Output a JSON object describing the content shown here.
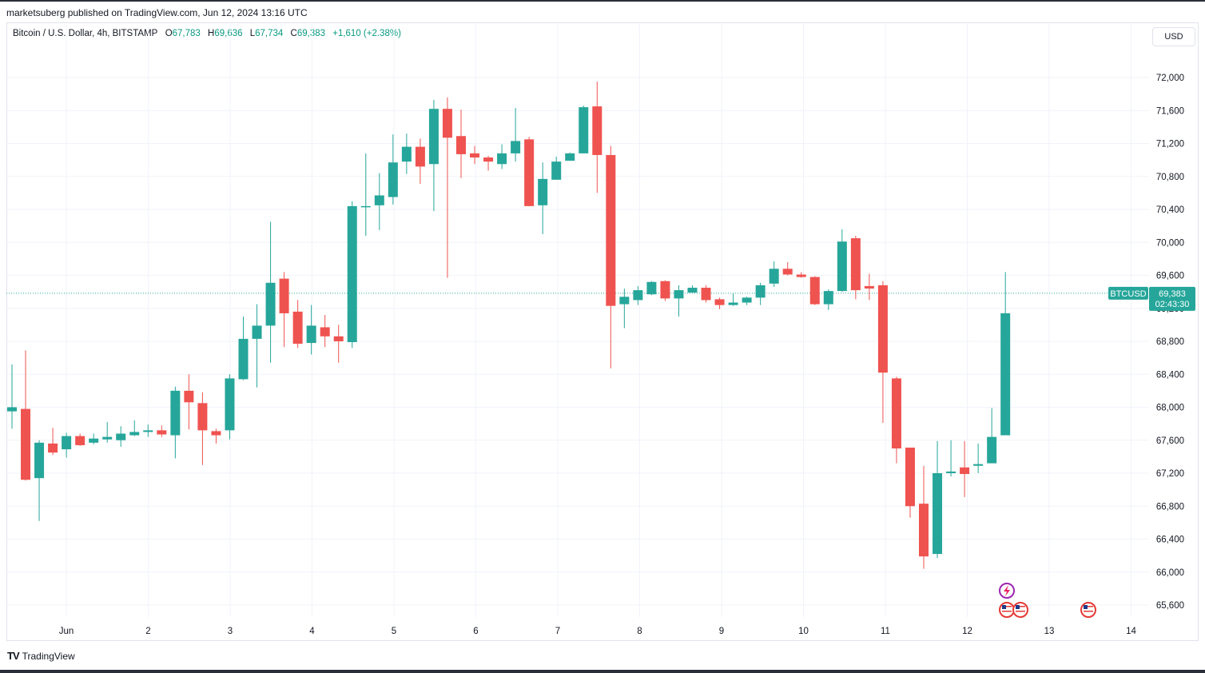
{
  "header": {
    "published": "marketsuberg published on TradingView.com, Jun 12, 2024 13:16 UTC"
  },
  "legend": {
    "symbol": "Bitcoin / U.S. Dollar, 4h, BITSTAMP",
    "o_label": "O",
    "o_value": "67,783",
    "h_label": "H",
    "h_value": "69,636",
    "l_label": "L",
    "l_value": "67,734",
    "c_label": "C",
    "c_value": "69,383",
    "change": "+1,610 (+2.38%)"
  },
  "currency_button": "USD",
  "brand": {
    "name": "TradingView",
    "logo": "TV"
  },
  "colors": {
    "up": "#26a69a",
    "down": "#ef5350",
    "grid": "#f0f3fa",
    "axis_text": "#131722",
    "price_tag": "#26a69a"
  },
  "icons": [
    "flash-event-icon",
    "us-flag-event-icon"
  ],
  "chart_data": {
    "type": "candlestick",
    "symbol": "BTCUSD",
    "interval": "4h",
    "x_tick_labels": [
      "Jun",
      "2",
      "3",
      "4",
      "5",
      "6",
      "7",
      "8",
      "9",
      "10",
      "11",
      "12",
      "13",
      "14"
    ],
    "y_tick_labels": [
      "72,000",
      "71,600",
      "71,200",
      "70,800",
      "70,400",
      "70,000",
      "69,600",
      "69,200",
      "68,800",
      "68,400",
      "68,000",
      "67,600",
      "67,200",
      "66,800",
      "66,400",
      "66,000",
      "65,600"
    ],
    "ylim": [
      65400,
      72400
    ],
    "grid": true,
    "current_price": {
      "label": "BTCUSD",
      "value": "69,383",
      "countdown": "02:43:30"
    },
    "candles": [
      [
        67950,
        68000,
        67740,
        68520
      ],
      [
        67980,
        67120,
        67110,
        68690
      ],
      [
        67140,
        67570,
        66620,
        67600
      ],
      [
        67560,
        67450,
        67420,
        67750
      ],
      [
        67490,
        67650,
        67390,
        67690
      ],
      [
        67650,
        67540,
        67530,
        67680
      ],
      [
        67570,
        67620,
        67550,
        67680
      ],
      [
        67610,
        67640,
        67570,
        67820
      ],
      [
        67600,
        67680,
        67520,
        67770
      ],
      [
        67660,
        67700,
        67650,
        67840
      ],
      [
        67700,
        67720,
        67640,
        67790
      ],
      [
        67720,
        67670,
        67640,
        67780
      ],
      [
        67660,
        68200,
        67380,
        68250
      ],
      [
        68200,
        68060,
        67730,
        68400
      ],
      [
        68050,
        67720,
        67300,
        68180
      ],
      [
        67710,
        67660,
        67560,
        67740
      ],
      [
        67720,
        68350,
        67610,
        68400
      ],
      [
        68340,
        68830,
        68330,
        69100
      ],
      [
        68830,
        68990,
        68240,
        69250
      ],
      [
        68990,
        69510,
        68540,
        70250
      ],
      [
        69560,
        69140,
        68730,
        69640
      ],
      [
        69160,
        68770,
        68720,
        69300
      ],
      [
        68780,
        68990,
        68640,
        69240
      ],
      [
        68970,
        68860,
        68730,
        69120
      ],
      [
        68860,
        68800,
        68540,
        69000
      ],
      [
        68790,
        70440,
        68720,
        70500
      ],
      [
        70440,
        70440,
        70080,
        71080
      ],
      [
        70450,
        70570,
        70150,
        70840
      ],
      [
        70550,
        70970,
        70460,
        71310
      ],
      [
        70980,
        71160,
        70830,
        71320
      ],
      [
        71160,
        70920,
        70710,
        71260
      ],
      [
        70950,
        71620,
        70380,
        71730
      ],
      [
        71620,
        71270,
        69570,
        71760
      ],
      [
        71290,
        71070,
        70780,
        71610
      ],
      [
        71080,
        71030,
        70950,
        71170
      ],
      [
        71030,
        70980,
        70870,
        71050
      ],
      [
        70950,
        71080,
        70890,
        71190
      ],
      [
        71080,
        71230,
        70980,
        71630
      ],
      [
        71250,
        70440,
        70440,
        71280
      ],
      [
        70450,
        70770,
        70100,
        70970
      ],
      [
        70760,
        70980,
        70770,
        71040
      ],
      [
        70990,
        71080,
        71010,
        71090
      ],
      [
        71080,
        71640,
        71080,
        71660
      ],
      [
        71650,
        71060,
        70600,
        71950
      ],
      [
        71060,
        69230,
        68470,
        71170
      ],
      [
        69250,
        69340,
        68960,
        69440
      ],
      [
        69300,
        69420,
        69240,
        69470
      ],
      [
        69370,
        69520,
        69360,
        69530
      ],
      [
        69530,
        69320,
        69290,
        69540
      ],
      [
        69320,
        69420,
        69100,
        69480
      ],
      [
        69390,
        69450,
        69420,
        69480
      ],
      [
        69450,
        69300,
        69270,
        69480
      ],
      [
        69310,
        69240,
        69190,
        69330
      ],
      [
        69240,
        69270,
        69230,
        69380
      ],
      [
        69270,
        69330,
        69240,
        69340
      ],
      [
        69330,
        69480,
        69240,
        69510
      ],
      [
        69500,
        69680,
        69460,
        69770
      ],
      [
        69680,
        69610,
        69600,
        69760
      ],
      [
        69610,
        69580,
        69570,
        69640
      ],
      [
        69580,
        69250,
        69240,
        69590
      ],
      [
        69250,
        69410,
        69180,
        69430
      ],
      [
        69410,
        70010,
        69400,
        70160
      ],
      [
        70050,
        69420,
        69310,
        70080
      ],
      [
        69470,
        69440,
        69300,
        69620
      ],
      [
        69480,
        68420,
        67810,
        69530
      ],
      [
        68350,
        67500,
        67320,
        68370
      ],
      [
        67510,
        66800,
        66660,
        67510
      ],
      [
        66830,
        66190,
        66040,
        67290
      ],
      [
        66220,
        67200,
        66170,
        67590
      ],
      [
        67200,
        67220,
        67160,
        67600
      ],
      [
        67270,
        67190,
        66910,
        67590
      ],
      [
        67290,
        67310,
        67200,
        67560
      ],
      [
        67320,
        67640,
        67350,
        67990
      ],
      [
        67660,
        69140,
        67700,
        69640
      ]
    ]
  }
}
